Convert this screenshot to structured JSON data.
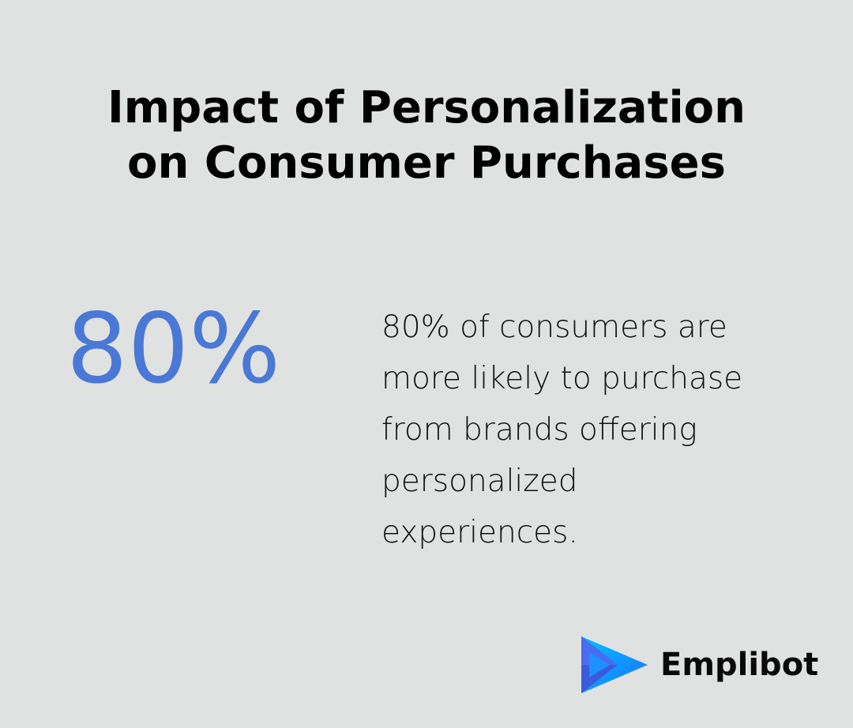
{
  "header": {
    "title_lines": [
      "Impact of Personalization",
      "on Consumer Purchases"
    ]
  },
  "stat": {
    "value": "80%",
    "description_lines": [
      "80% of consumers are",
      "more likely to purchase",
      "from brands offering",
      "personalized",
      "experiences."
    ],
    "value_color": "#4a78d6"
  },
  "brand": {
    "name": "Emplibot",
    "logo_icon": "play-arrow-logo-icon",
    "logo_colors": [
      "#1e90ff",
      "#3b5bdb",
      "#00c2ff"
    ]
  },
  "background_color": "#e0e2e1"
}
